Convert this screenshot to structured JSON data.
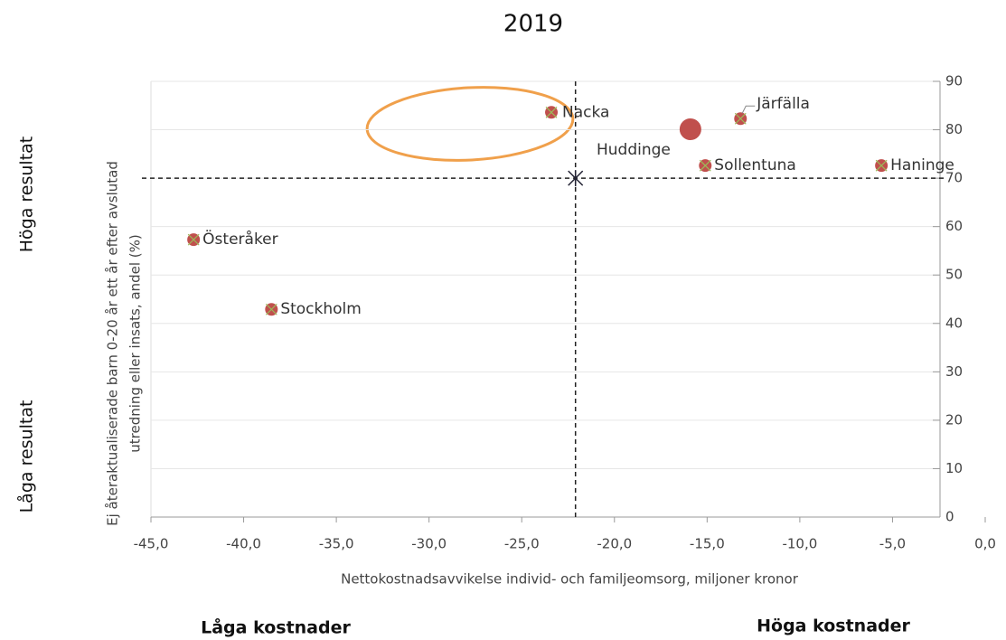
{
  "chart_data": {
    "type": "scatter",
    "title": "2019",
    "x_label": "Nettokostnadsavvikelse individ- och familjeomsorg, miljoner kronor",
    "y_label": [
      "Ej återaktualiserade barn 0-20 år ett år efter avslutad",
      "utredning eller insats, andel (%)"
    ],
    "side_labels": {
      "top": "Höga resultat",
      "bottom": "Låga resultat",
      "left": "Låga kostnader",
      "right": "Höga kostnader"
    },
    "xlim": [
      -45,
      0
    ],
    "ylim": [
      0,
      90
    ],
    "xticks": [
      {
        "value": -45,
        "label": "-45,0"
      },
      {
        "value": -40,
        "label": "-40,0"
      },
      {
        "value": -35,
        "label": "-35,0"
      },
      {
        "value": -30,
        "label": "-30,0"
      },
      {
        "value": -25,
        "label": "-25,0"
      },
      {
        "value": -20,
        "label": "-20,0"
      },
      {
        "value": -15,
        "label": "-15,0"
      },
      {
        "value": -10,
        "label": "-10,0"
      },
      {
        "value": -5,
        "label": "-5,0"
      },
      {
        "value": 0,
        "label": "0,0"
      }
    ],
    "yticks": [
      0,
      10,
      20,
      30,
      40,
      50,
      60,
      70,
      80,
      90
    ],
    "grid": true,
    "series": [
      {
        "color": "#c0504d",
        "marker_size": 7,
        "labels": [
          "Nacka",
          "Järfälla",
          "Sollentuna",
          "Haninge",
          "Österåker",
          "Stockholm"
        ],
        "x": [
          -23.4,
          -13.2,
          -15.1,
          -5.6,
          -42.7,
          -38.5
        ],
        "y": [
          83.6,
          82.3,
          72.6,
          72.6,
          57.3,
          42.9
        ]
      },
      {
        "color": "#c0504d",
        "marker_size": 12,
        "labels": [
          "Huddinge"
        ],
        "x": [
          -15.9
        ],
        "y": [
          80.1
        ]
      }
    ],
    "reference": {
      "x": -22.1,
      "y": 70
    }
  }
}
